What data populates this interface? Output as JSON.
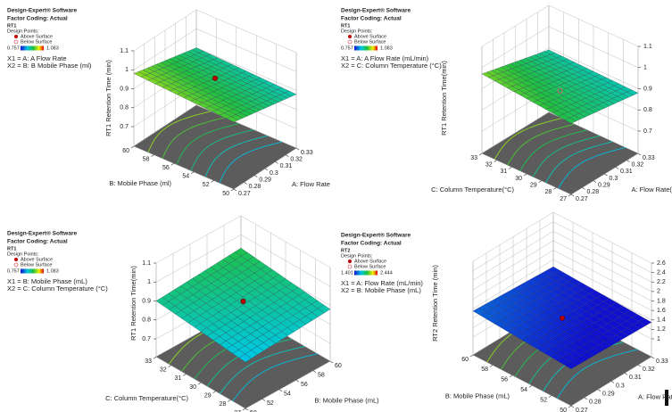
{
  "chart_data": [
    {
      "type": "surface",
      "software": "Design-Expert® Software",
      "coding": "Factor Coding: Actual",
      "response": "RT1",
      "design_points": "Design Points:",
      "above": "Above Surface",
      "below": "Below Surface",
      "color_range": [
        0.757,
        1.083
      ],
      "x1": "X1 = A: A Flow Rate",
      "x2": "X2 = B: B Mobile Phase (ml)",
      "zlabel": "RT1 Retention Time (min)",
      "xlabel": "A: Flow Rate",
      "ylabel": "B: Mobile Phase (ml)",
      "xlim": [
        0.27,
        0.33
      ],
      "xticks": [
        0.27,
        0.28,
        0.29,
        0.3,
        0.31,
        0.32,
        0.33
      ],
      "ylim": [
        50,
        60
      ],
      "yticks": [
        50,
        52,
        54,
        56,
        58,
        60
      ],
      "zlim": [
        0.7,
        1.1
      ],
      "zticks": [
        0.7,
        0.8,
        0.9,
        1,
        1.1
      ],
      "surface": {
        "z": [
          [
            0.95,
            0.98
          ],
          [
            0.88,
            0.9
          ]
        ]
      },
      "design_point": {
        "x": 0.3,
        "y": 55,
        "z": 0.96,
        "filled": true
      }
    },
    {
      "type": "surface",
      "software": "Design-Expert® Software",
      "coding": "Factor Coding: Actual",
      "response": "RT1",
      "design_points": "Design Points:",
      "above": "Above Surface",
      "below": "Below Surface",
      "color_range": [
        0.757,
        1.083
      ],
      "x1": "X1 = A: A Flow Rate (mL/min)",
      "x2": "X2 = C: Column Temperature (°C)",
      "zlabel": "RT1 Retention Time(min)",
      "xlabel": "A: Flow Rate(mL/min)",
      "ylabel": "C: Column Temperature(°C)",
      "xlim": [
        0.27,
        0.33
      ],
      "xticks": [
        0.27,
        0.28,
        0.29,
        0.3,
        0.31,
        0.32,
        0.33
      ],
      "ylim": [
        27,
        33
      ],
      "yticks": [
        27,
        28,
        29,
        30,
        31,
        32,
        33
      ],
      "zlim": [
        0.7,
        1.1
      ],
      "zticks": [
        0.7,
        0.8,
        0.9,
        1,
        1.1
      ],
      "surface": {
        "z": [
          [
            0.93,
            0.97
          ],
          [
            0.88,
            0.89
          ]
        ]
      },
      "design_point": {
        "x": 0.3,
        "y": 30,
        "z": 0.89,
        "filled": false
      }
    },
    {
      "type": "surface",
      "software": "Design-Expert® Software",
      "coding": "Factor Coding: Actual",
      "response": "RT1",
      "design_points": "Design Points:",
      "above": "Above Surface",
      "below": "Below Surface",
      "color_range": [
        0.757,
        1.083
      ],
      "x1": "X1 = B: Mobile Phase (mL)",
      "x2": "X2 = C: Column Temperature (°C)",
      "zlabel": "RT1 Retention Time(min)",
      "xlabel": "B: Mobile Phase (mL)",
      "ylabel": "C: Column Temperature(°C)",
      "xlim": [
        50,
        60
      ],
      "xticks": [
        50,
        52,
        54,
        56,
        58,
        60
      ],
      "ylim": [
        27,
        33
      ],
      "yticks": [
        27,
        28,
        29,
        30,
        31,
        32,
        33
      ],
      "zlim": [
        0.7,
        1.1
      ],
      "zticks": [
        0.7,
        0.8,
        0.9,
        1,
        1.1
      ],
      "surface": {
        "z": [
          [
            0.85,
            0.9
          ],
          [
            0.88,
            0.93
          ]
        ]
      },
      "design_point": {
        "x": 55,
        "y": 30,
        "z": 0.91,
        "filled": true
      }
    },
    {
      "type": "surface",
      "software": "Design-Expert® Software",
      "coding": "Factor Coding: Actual",
      "response": "RT2",
      "design_points": "Design Points:",
      "above": "Above Surface",
      "below": "Below Surface",
      "color_range": [
        1.401,
        2.444
      ],
      "x1": "X1 = A: Flow Rate (mL/min)",
      "x2": "X2 = B: Mobile Phase (mL)",
      "zlabel": "RT2 Retention Time (min)",
      "xlabel": "A: Flow Rate(mL/min)",
      "ylabel": "B: Mobile Phase (mL)",
      "xlim": [
        0.27,
        0.33
      ],
      "xticks": [
        0.27,
        0.28,
        0.29,
        0.3,
        0.31,
        0.32,
        0.33
      ],
      "ylim": [
        50,
        60
      ],
      "yticks": [
        50,
        52,
        54,
        56,
        58,
        60
      ],
      "zlim": [
        1,
        2.6
      ],
      "zticks": [
        1,
        1.2,
        1.4,
        1.6,
        1.8,
        2,
        2.2,
        2.4,
        2.6
      ],
      "surface": {
        "z": [
          [
            1.4,
            1.55
          ],
          [
            1.35,
            1.45
          ]
        ]
      },
      "design_point": {
        "x": 0.3,
        "y": 55,
        "z": 1.42,
        "filled": true
      }
    }
  ]
}
